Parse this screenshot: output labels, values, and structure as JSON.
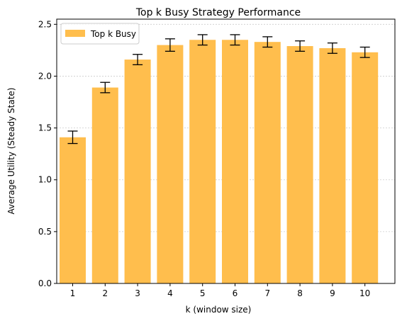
{
  "chart_data": {
    "type": "bar",
    "title": "Top k Busy Strategy Performance",
    "xlabel": "k (window size)",
    "ylabel": "Average Utility (Steady State)",
    "categories": [
      "1",
      "2",
      "3",
      "4",
      "5",
      "6",
      "7",
      "8",
      "9",
      "10"
    ],
    "series": [
      {
        "name": "Top k Busy",
        "values": [
          1.41,
          1.89,
          2.16,
          2.3,
          2.35,
          2.35,
          2.33,
          2.29,
          2.27,
          2.23
        ],
        "errors": [
          0.06,
          0.05,
          0.05,
          0.06,
          0.05,
          0.05,
          0.05,
          0.05,
          0.05,
          0.05
        ],
        "color": "#ffbe4d"
      }
    ],
    "ylim": [
      0,
      2.5
    ],
    "yticks": [
      "0.0",
      "0.5",
      "1.0",
      "1.5",
      "2.0",
      "2.5"
    ],
    "grid": "y-dotted",
    "legend_position": "top-left"
  }
}
